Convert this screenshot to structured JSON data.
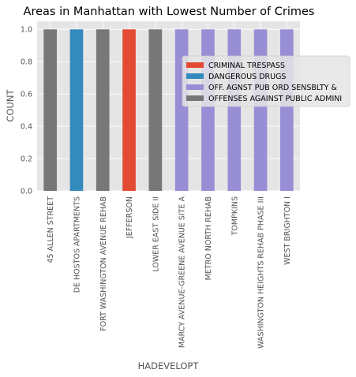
{
  "chart_data": {
    "type": "bar",
    "stacked": true,
    "title": "Areas in Manhattan with Lowest Number of Crimes",
    "xlabel": "HADEVELOPT",
    "ylabel": "COUNT",
    "ylim": [
      0,
      1.05
    ],
    "yticks": [
      "0.0",
      "0.2",
      "0.4",
      "0.6",
      "0.8",
      "1.0"
    ],
    "grid": true,
    "legend_position": "right",
    "categories": [
      "45 ALLEN STREET",
      "DE HOSTOS APARTMENTS",
      "FORT WASHINGTON AVENUE REHAB",
      "JEFFERSON",
      "LOWER EAST SIDE II",
      "MARCY AVENUE-GREENE AVENUE SITE A",
      "METRO NORTH REHAB",
      "TOMPKINS",
      "WASHINGTON HEIGHTS REHAB PHASE III",
      "WEST BRIGHTON I"
    ],
    "series": [
      {
        "name": "CRIMINAL TRESPASS",
        "color": "#E24A33",
        "values": [
          0,
          0,
          0,
          1,
          0,
          0,
          0,
          0,
          0,
          0
        ]
      },
      {
        "name": "DANGEROUS DRUGS",
        "color": "#348ABD",
        "values": [
          0,
          1,
          0,
          0,
          0,
          0,
          0,
          0,
          0,
          0
        ]
      },
      {
        "name": "OFF. AGNST PUB ORD SENSBLTY &",
        "color": "#988ED5",
        "values": [
          0,
          0,
          0,
          0,
          0,
          1,
          1,
          1,
          1,
          1
        ]
      },
      {
        "name": "OFFENSES AGAINST PUBLIC ADMINI",
        "color": "#777777",
        "values": [
          1,
          0,
          1,
          0,
          1,
          0,
          0,
          0,
          0,
          0
        ]
      }
    ]
  },
  "colors": {
    "plot_background": "#E5E5E5",
    "grid": "#FFFFFF"
  }
}
